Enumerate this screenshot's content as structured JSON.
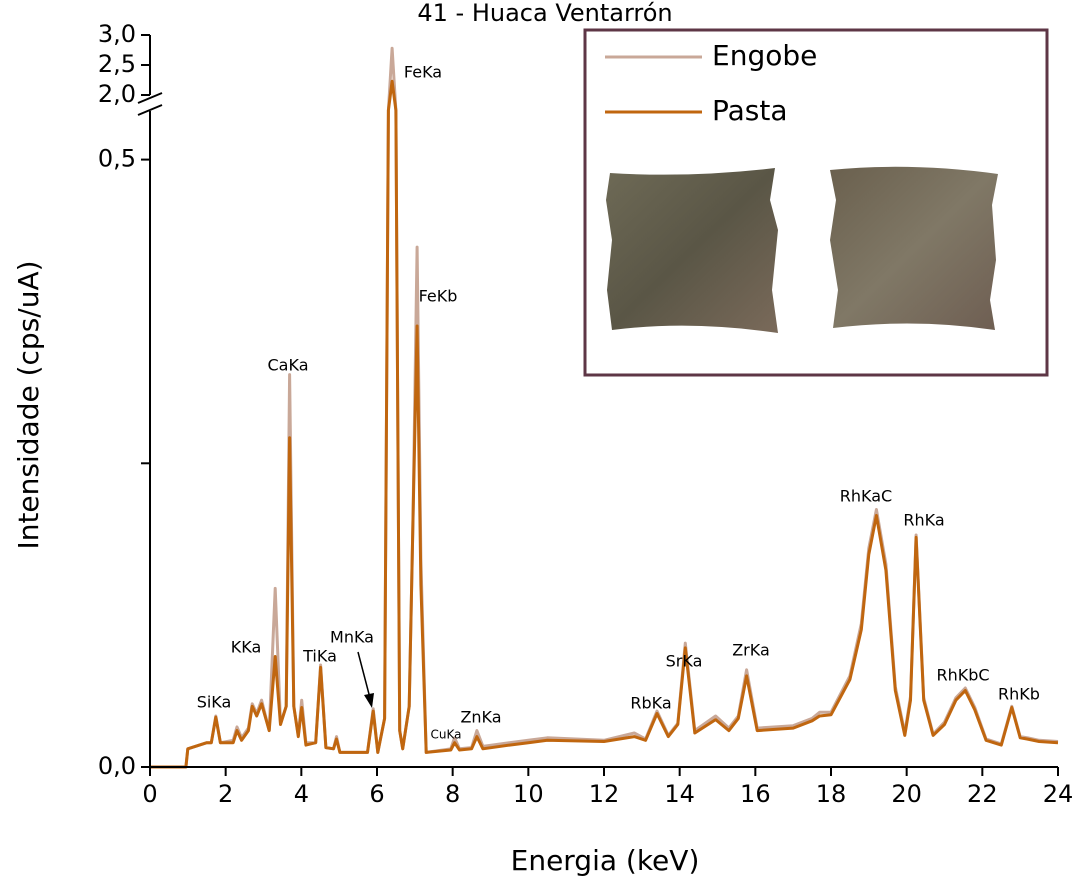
{
  "chart_data": {
    "type": "line",
    "title": "41 - Huaca Ventarrón",
    "xlabel": "Energia (keV)",
    "ylabel": "Intensidade (cps/uA)",
    "xlim": [
      0,
      24
    ],
    "xticks": [
      0,
      2,
      4,
      6,
      8,
      10,
      12,
      14,
      16,
      18,
      20,
      22,
      24
    ],
    "ylim": [
      0,
      3.0
    ],
    "ybreak": [
      0.54,
      2.0
    ],
    "yticks": [
      {
        "value": 0,
        "label": "0,0"
      },
      {
        "value": 0.25,
        "label": null
      },
      {
        "value": 0.5,
        "label": "0,5"
      },
      {
        "value": 2.0,
        "label": "2,0"
      },
      {
        "value": 2.5,
        "label": "2,5"
      },
      {
        "value": 3.0,
        "label": "3,0"
      }
    ],
    "x": [
      0,
      0.95,
      1.0,
      1.5,
      1.62,
      1.74,
      1.86,
      2.2,
      2.3,
      2.42,
      2.6,
      2.7,
      2.82,
      2.95,
      3.15,
      3.31,
      3.45,
      3.6,
      3.69,
      3.8,
      3.92,
      4.01,
      4.12,
      4.38,
      4.51,
      4.65,
      4.85,
      4.93,
      5.02,
      5.75,
      5.9,
      6.02,
      6.2,
      6.3,
      6.4,
      6.5,
      6.6,
      6.68,
      6.85,
      6.95,
      7.06,
      7.16,
      7.3,
      7.95,
      8.05,
      8.18,
      8.5,
      8.64,
      8.8,
      9.5,
      10.0,
      10.5,
      12.0,
      12.8,
      13.1,
      13.4,
      13.7,
      13.95,
      14.15,
      14.4,
      14.95,
      15.3,
      15.55,
      15.77,
      16.05,
      17.0,
      17.5,
      17.7,
      18.0,
      18.5,
      18.8,
      19.0,
      19.2,
      19.45,
      19.7,
      19.95,
      20.1,
      20.25,
      20.45,
      20.7,
      21.0,
      21.3,
      21.55,
      21.8,
      22.1,
      22.5,
      22.78,
      23.0,
      23.2,
      23.5,
      24.0
    ],
    "series": [
      {
        "name": "Engobe",
        "color": "#c9a898",
        "values": [
          0,
          0,
          0.015,
          0.02,
          0.02,
          0.042,
          0.02,
          0.022,
          0.033,
          0.024,
          0.032,
          0.052,
          0.044,
          0.055,
          0.03,
          0.147,
          0.036,
          0.05,
          0.323,
          0.05,
          0.026,
          0.055,
          0.02,
          0.02,
          0.084,
          0.016,
          0.015,
          0.025,
          0.012,
          0.012,
          0.048,
          0.012,
          0.04,
          0.6,
          2.78,
          0.6,
          0.03,
          0.015,
          0.05,
          0.2,
          0.428,
          0.17,
          0.012,
          0.015,
          0.024,
          0.015,
          0.016,
          0.03,
          0.017,
          0.02,
          0.022,
          0.024,
          0.022,
          0.028,
          0.023,
          0.046,
          0.026,
          0.036,
          0.102,
          0.03,
          0.042,
          0.032,
          0.042,
          0.08,
          0.032,
          0.034,
          0.04,
          0.045,
          0.045,
          0.075,
          0.118,
          0.18,
          0.212,
          0.167,
          0.066,
          0.028,
          0.058,
          0.191,
          0.057,
          0.027,
          0.037,
          0.057,
          0.065,
          0.049,
          0.023,
          0.019,
          0.05,
          0.025,
          0.024,
          0.022,
          0.021
        ]
      },
      {
        "name": "Pasta",
        "color": "#c0660f",
        "values": [
          0,
          0,
          0.015,
          0.02,
          0.02,
          0.041,
          0.02,
          0.02,
          0.03,
          0.022,
          0.03,
          0.05,
          0.042,
          0.052,
          0.03,
          0.091,
          0.035,
          0.05,
          0.271,
          0.05,
          0.025,
          0.049,
          0.018,
          0.02,
          0.082,
          0.016,
          0.015,
          0.023,
          0.012,
          0.012,
          0.046,
          0.012,
          0.04,
          0.6,
          2.23,
          0.6,
          0.03,
          0.015,
          0.05,
          0.2,
          0.363,
          0.15,
          0.012,
          0.014,
          0.02,
          0.014,
          0.015,
          0.025,
          0.015,
          0.018,
          0.02,
          0.022,
          0.021,
          0.025,
          0.022,
          0.044,
          0.025,
          0.035,
          0.098,
          0.028,
          0.039,
          0.03,
          0.04,
          0.075,
          0.03,
          0.032,
          0.038,
          0.042,
          0.043,
          0.072,
          0.113,
          0.175,
          0.207,
          0.162,
          0.063,
          0.026,
          0.055,
          0.189,
          0.055,
          0.026,
          0.035,
          0.055,
          0.063,
          0.047,
          0.022,
          0.018,
          0.049,
          0.024,
          0.023,
          0.021,
          0.02
        ]
      }
    ],
    "annotations": [
      "SiKa",
      "KKa",
      "CaKa",
      "TiKa",
      "MnKa",
      "FeKa",
      "FeKb",
      "CuKa",
      "ZnKa",
      "RbKa",
      "SrKa",
      "ZrKa",
      "RhKaC",
      "RhKa",
      "RhKbC",
      "RhKb"
    ]
  }
}
